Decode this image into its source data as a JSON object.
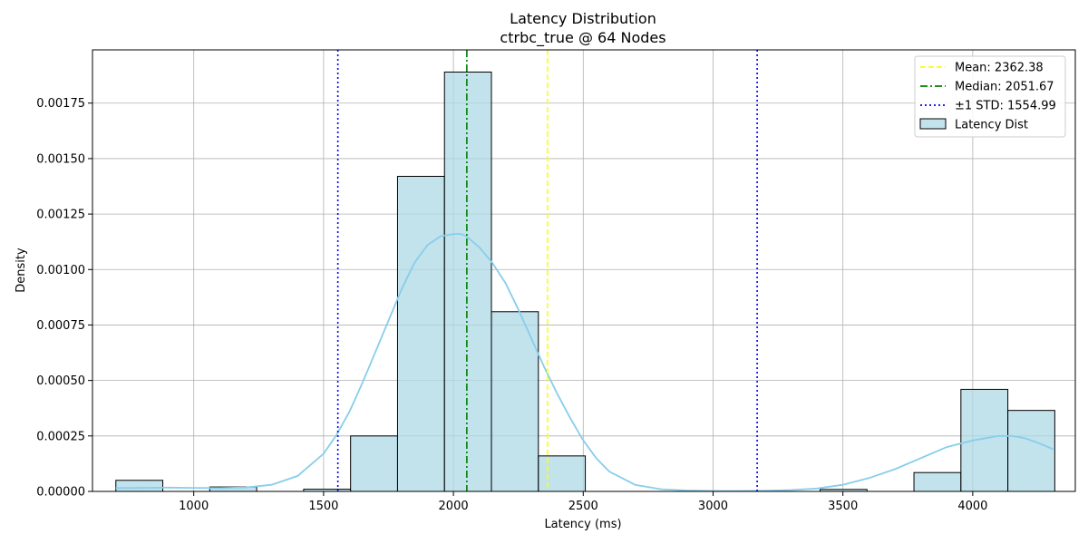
{
  "chart_data": {
    "type": "bar",
    "title": "Latency Distribution",
    "subtitle": "ctrbc_true @ 64 Nodes",
    "xlabel": "Latency (ms)",
    "ylabel": "Density",
    "xlim": [
      610,
      4395
    ],
    "ylim": [
      0,
      0.00199
    ],
    "xticks": [
      1000,
      1500,
      2000,
      2500,
      3000,
      3500,
      4000
    ],
    "xtick_labels": [
      "1000",
      "1500",
      "2000",
      "2500",
      "3000",
      "3500",
      "4000"
    ],
    "yticks": [
      0,
      0.00025,
      0.0005,
      0.00075,
      0.001,
      0.00125,
      0.0015,
      0.00175
    ],
    "ytick_labels": [
      "0.00000",
      "0.00025",
      "0.00050",
      "0.00075",
      "0.00100",
      "0.00125",
      "0.00150",
      "0.00175"
    ],
    "grid": true,
    "legend_position": "top-right",
    "bins": {
      "start": 700,
      "width": 180.8,
      "values": [
        5e-05,
        0,
        2e-05,
        0,
        1e-05,
        0.00025,
        0.00142,
        0.00189,
        0.00081,
        0.00016,
        0,
        0,
        0,
        0,
        0,
        9e-06,
        0,
        8.5e-05,
        0.00046,
        0.000365
      ]
    },
    "kde": {
      "x": [
        700,
        800,
        900,
        1000,
        1100,
        1200,
        1300,
        1400,
        1500,
        1550,
        1600,
        1650,
        1700,
        1750,
        1800,
        1850,
        1900,
        1950,
        2000,
        2030,
        2050,
        2100,
        2150,
        2200,
        2250,
        2300,
        2350,
        2400,
        2450,
        2500,
        2550,
        2600,
        2700,
        2800,
        2900,
        3000,
        3100,
        3200,
        3300,
        3400,
        3500,
        3600,
        3700,
        3800,
        3900,
        4000,
        4050,
        4100,
        4150,
        4200,
        4250,
        4310
      ],
      "y": [
        1.5e-05,
        1.6e-05,
        1.7e-05,
        1.6e-05,
        1.5e-05,
        1.8e-05,
        3e-05,
        7e-05,
        0.00017,
        0.000255,
        0.00036,
        0.00049,
        0.00063,
        0.00077,
        0.00091,
        0.00103,
        0.00111,
        0.00115,
        0.00116,
        0.00116,
        0.00115,
        0.0011,
        0.00103,
        0.00094,
        0.00082,
        0.00069,
        0.00056,
        0.00044,
        0.00033,
        0.00023,
        0.00015,
        9e-05,
        3e-05,
        1e-05,
        4e-06,
        2e-06,
        2e-06,
        3e-06,
        6e-06,
        1.3e-05,
        3e-05,
        6e-05,
        0.0001,
        0.00015,
        0.0002,
        0.00023,
        0.00024,
        0.00025,
        0.00025,
        0.00024,
        0.00022,
        0.00019
      ]
    },
    "reference_lines": [
      {
        "name": "Mean: 2362.38",
        "x": 2362.38,
        "color": "#ffff00",
        "style": "dashed"
      },
      {
        "name": "Median: 2051.67",
        "x": 2051.67,
        "color": "#008000",
        "style": "dashdot"
      },
      {
        "name": "±1 STD: 1554.99",
        "x": [
          1554.99,
          3169.77
        ],
        "color": "#0000ff",
        "style": "dotted"
      }
    ],
    "series": [
      {
        "name": "Latency Dist",
        "color": "#add8e6",
        "edge": "#000000",
        "kde_color": "#87ceeb"
      }
    ]
  }
}
